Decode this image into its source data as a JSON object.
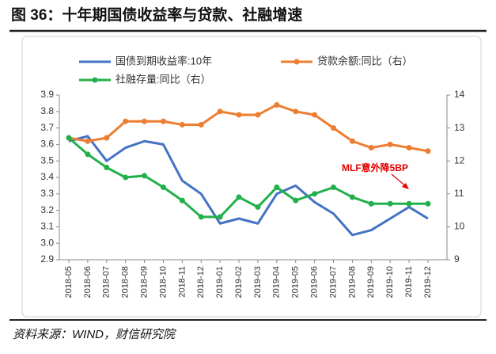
{
  "chart_data": {
    "type": "line",
    "title": "图 36：十年期国债收益率与贷款、社融增速",
    "source": "资料来源：WIND，财信研究院",
    "annotation": "MLF意外降5BP",
    "categories": [
      "2018-05",
      "2018-06",
      "2018-07",
      "2018-08",
      "2018-09",
      "2018-10",
      "2018-11",
      "2018-12",
      "2019-01",
      "2019-02",
      "2019-03",
      "2019-04",
      "2019-05",
      "2019-06",
      "2019-07",
      "2019-08",
      "2019-09",
      "2019-10",
      "2019-11",
      "2019-12"
    ],
    "series": [
      {
        "name": "国债到期收益率:10年",
        "color": "#4472c4",
        "axis": "y",
        "markers": false,
        "values": [
          3.62,
          3.65,
          3.5,
          3.58,
          3.62,
          3.6,
          3.38,
          3.3,
          3.12,
          3.15,
          3.12,
          3.3,
          3.35,
          3.25,
          3.18,
          3.05,
          3.08,
          3.15,
          3.22,
          3.15
        ]
      },
      {
        "name": "贷款余额:同比（右）",
        "color": "#ed7d31",
        "axis": "y2",
        "markers": true,
        "values": [
          12.7,
          12.6,
          12.7,
          13.2,
          13.2,
          13.2,
          13.1,
          13.1,
          13.5,
          13.4,
          13.4,
          13.7,
          13.5,
          13.4,
          13.0,
          12.6,
          12.4,
          12.5,
          12.4,
          12.3
        ]
      },
      {
        "name": "社融存量:同比（右）",
        "color": "#22b04b",
        "axis": "y2",
        "markers": true,
        "values": [
          12.7,
          12.2,
          11.8,
          11.5,
          11.55,
          11.2,
          10.8,
          10.3,
          10.3,
          10.9,
          10.6,
          11.2,
          10.8,
          11.0,
          11.2,
          10.9,
          10.7,
          10.7,
          10.7,
          10.7
        ]
      }
    ],
    "ylim": [
      2.9,
      3.9
    ],
    "yticks": [
      2.9,
      {
        "value": 3,
        "label": "3.0"
      },
      3.1,
      3.2,
      3.3,
      3.4,
      3.5,
      3.6,
      3.7,
      3.8,
      3.9
    ],
    "y2lim": [
      9,
      14
    ],
    "y2ticks": [
      9,
      10,
      11,
      12,
      13,
      14
    ],
    "grid": false
  }
}
